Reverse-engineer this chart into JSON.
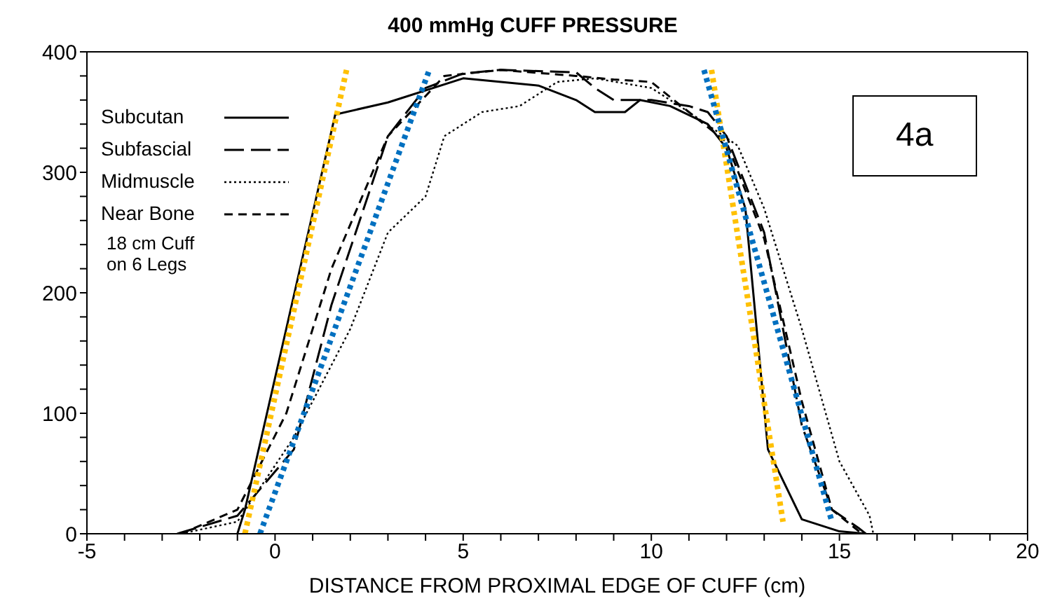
{
  "chart_data": {
    "type": "line",
    "title": "400 mmHg CUFF PRESSURE",
    "xlabel": "DISTANCE FROM PROXIMAL EDGE OF CUFF (cm)",
    "xlim": [
      -5,
      20
    ],
    "ylim": [
      0,
      400
    ],
    "xticks": [
      -5,
      {
        "value": -4,
        "label": null
      },
      {
        "value": -3,
        "label": null
      },
      {
        "value": -2,
        "label": null
      },
      {
        "value": -1,
        "label": null
      },
      0,
      {
        "value": 1,
        "label": null
      },
      {
        "value": 2,
        "label": null
      },
      {
        "value": 3,
        "label": null
      },
      {
        "value": 4,
        "label": null
      },
      5,
      {
        "value": 6,
        "label": null
      },
      {
        "value": 7,
        "label": null
      },
      {
        "value": 8,
        "label": null
      },
      {
        "value": 9,
        "label": null
      },
      10,
      {
        "value": 11,
        "label": null
      },
      {
        "value": 12,
        "label": null
      },
      {
        "value": 13,
        "label": null
      },
      {
        "value": 14,
        "label": null
      },
      15,
      {
        "value": 16,
        "label": null
      },
      {
        "value": 17,
        "label": null
      },
      {
        "value": 18,
        "label": null
      },
      {
        "value": 19,
        "label": null
      },
      20
    ],
    "yticks": [
      0,
      {
        "value": 20,
        "label": null
      },
      {
        "value": 40,
        "label": null
      },
      {
        "value": 60,
        "label": null
      },
      {
        "value": 80,
        "label": null
      },
      100,
      {
        "value": 120,
        "label": null
      },
      {
        "value": 140,
        "label": null
      },
      {
        "value": 160,
        "label": null
      },
      {
        "value": 180,
        "label": null
      },
      200,
      {
        "value": 220,
        "label": null
      },
      {
        "value": 240,
        "label": null
      },
      {
        "value": 260,
        "label": null
      },
      {
        "value": 280,
        "label": null
      },
      300,
      {
        "value": 320,
        "label": null
      },
      {
        "value": 340,
        "label": null
      },
      {
        "value": 360,
        "label": null
      },
      {
        "value": 380,
        "label": null
      },
      400
    ],
    "legend": "top left",
    "marker": "none",
    "annotations": [
      "18 cm Cuff\non 6 Legs",
      "4a"
    ],
    "series": [
      {
        "name": "Subcutan",
        "color": "#000000",
        "line_style": "solid",
        "x": [
          -1,
          -0.8,
          1.6,
          3,
          5,
          7,
          8,
          8.5,
          9.3,
          9.7,
          10.5,
          11.5,
          12,
          12.5,
          13.1,
          14,
          15,
          15.7
        ],
        "values": [
          0,
          20,
          348,
          358,
          378,
          372,
          360,
          350,
          350,
          360,
          355,
          340,
          320,
          270,
          70,
          12,
          2,
          0
        ]
      },
      {
        "name": "Subfascial",
        "color": "#000000",
        "line_style": "longdash",
        "x": [
          -2.6,
          -1,
          0.5,
          1.5,
          3,
          4,
          5,
          6,
          8,
          8.5,
          9,
          10,
          11,
          11.5,
          12,
          13,
          14,
          14.8,
          15.5,
          15.7
        ],
        "values": [
          0,
          15,
          70,
          190,
          330,
          370,
          382,
          385,
          383,
          370,
          360,
          360,
          355,
          350,
          330,
          250,
          90,
          20,
          5,
          0
        ]
      },
      {
        "name": "Midmuscle",
        "color": "#000000",
        "line_style": "dotted",
        "x": [
          -2.5,
          -1,
          0.5,
          2,
          3,
          4,
          4.5,
          5.5,
          6.5,
          7.5,
          8.5,
          10,
          11,
          12.3,
          13,
          14,
          15,
          15.8,
          15.9
        ],
        "values": [
          0,
          10,
          80,
          170,
          250,
          280,
          330,
          350,
          355,
          375,
          378,
          370,
          350,
          322,
          270,
          170,
          60,
          15,
          0
        ]
      },
      {
        "name": "Near Bone",
        "color": "#000000",
        "line_style": "dashed",
        "x": [
          -2.5,
          -1,
          0.3,
          1.5,
          3,
          4.5,
          6,
          8,
          9,
          10,
          11,
          12,
          13,
          14,
          14.8,
          15.6
        ],
        "values": [
          0,
          20,
          100,
          220,
          330,
          380,
          385,
          380,
          377,
          375,
          350,
          325,
          245,
          110,
          20,
          0
        ]
      },
      {
        "color": "#ffc000",
        "line_style": "heavydotted",
        "x": [
          -0.8,
          1.9
        ],
        "values": [
          0,
          385
        ]
      },
      {
        "color": "#ffc000",
        "line_style": "heavydotted",
        "x": [
          11.6,
          13.5
        ],
        "values": [
          385,
          10
        ]
      },
      {
        "color": "#0070c0",
        "line_style": "heavydotted",
        "x": [
          -0.4,
          4.1
        ],
        "values": [
          0,
          385
        ]
      },
      {
        "color": "#0070c0",
        "line_style": "heavydotted",
        "x": [
          11.4,
          14.8
        ],
        "values": [
          385,
          10
        ]
      }
    ]
  }
}
